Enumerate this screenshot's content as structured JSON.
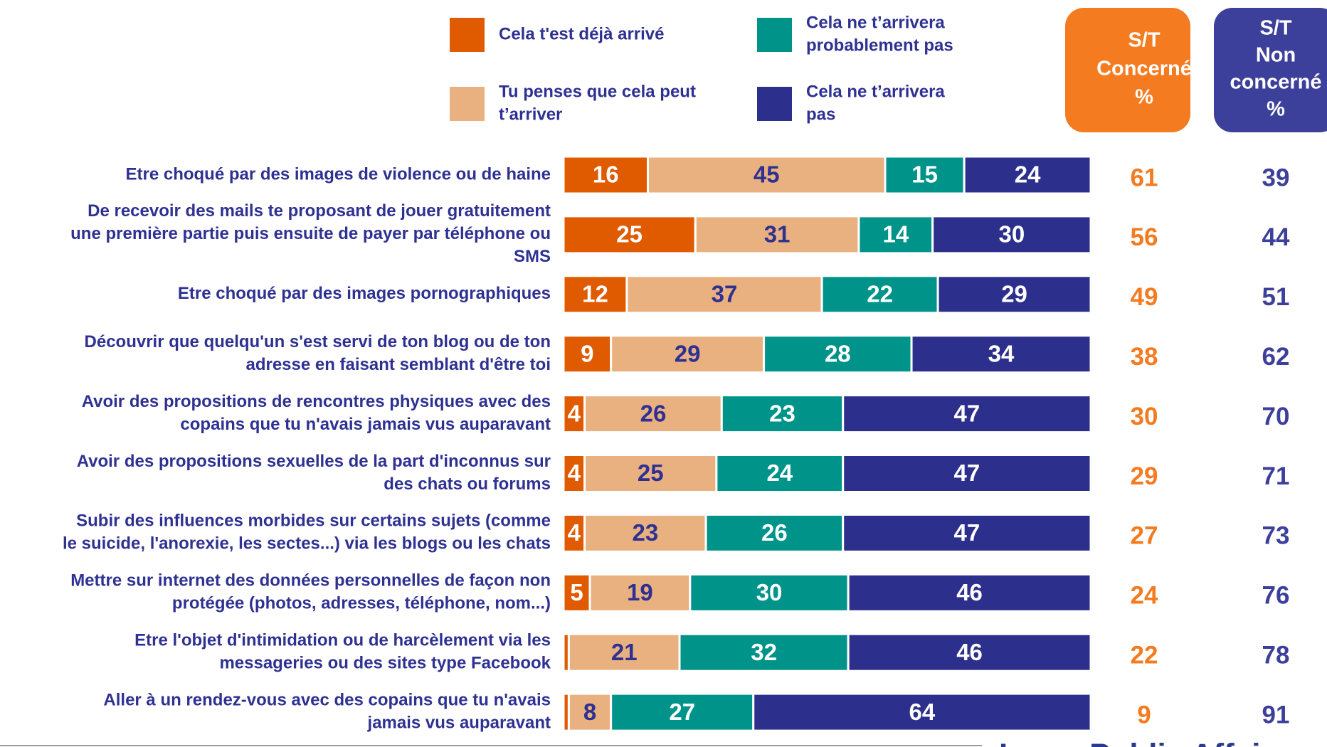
{
  "chart_data": {
    "type": "stacked-barh",
    "categories": [
      [
        "Etre choqué par des images de violence ou de haine"
      ],
      [
        "De recevoir des mails te proposant de jouer gratuitement",
        "une première partie puis ensuite de payer par téléphone ou",
        "SMS"
      ],
      [
        "Etre choqué par des images pornographiques"
      ],
      [
        "Découvrir que quelqu'un s'est servi de ton blog ou de ton",
        "adresse en faisant semblant d'être toi"
      ],
      [
        "Avoir des propositions de rencontres physiques avec des",
        "copains que tu n'avais jamais vus auparavant"
      ],
      [
        "Avoir des propositions sexuelles de la part d'inconnus sur",
        "des chats ou forums"
      ],
      [
        "Subir des influences morbides sur certains sujets (comme",
        "le suicide, l'anorexie, les sectes...) via les blogs ou les chats"
      ],
      [
        "Mettre sur internet des données personnelles de façon non",
        "protégée (photos, adresses, téléphone, nom...)"
      ],
      [
        "Etre l'objet d'intimidation ou de harcèlement via les",
        "messageries ou des sites type Facebook"
      ],
      [
        "Aller à un rendez-vous avec des copains que tu n'avais",
        "jamais vus auparavant"
      ]
    ],
    "series": [
      {
        "name": [
          "Cela t'est déjà arrivé"
        ],
        "color": "#e05a00",
        "values": [
          16,
          25,
          12,
          9,
          4,
          4,
          4,
          5,
          1,
          1
        ]
      },
      {
        "name": [
          "Tu penses que cela peut",
          "t’arriver"
        ],
        "color": "#e9b17f",
        "values": [
          45,
          31,
          37,
          29,
          26,
          25,
          23,
          19,
          21,
          8
        ]
      },
      {
        "name": [
          "Cela ne t’arrivera",
          "probablement pas"
        ],
        "color": "#00938a",
        "values": [
          15,
          14,
          22,
          28,
          23,
          24,
          26,
          30,
          32,
          27
        ]
      },
      {
        "name": [
          "Cela ne t’arrivera",
          "pas"
        ],
        "color": "#2c2f8c",
        "values": [
          24,
          30,
          29,
          34,
          47,
          47,
          47,
          46,
          46,
          64
        ]
      }
    ],
    "xlim": [
      0,
      100
    ],
    "columns": [
      {
        "header": [
          "S/T",
          "Concerné",
          "%"
        ],
        "color": "#f47b20",
        "values": [
          61,
          56,
          49,
          38,
          30,
          29,
          27,
          24,
          22,
          9
        ]
      },
      {
        "header": [
          "S/T",
          "Non",
          "concerné",
          "%"
        ],
        "color": "#3d409b",
        "values": [
          39,
          44,
          51,
          62,
          70,
          71,
          73,
          76,
          78,
          91
        ]
      }
    ],
    "footer": "Ipsos Public Affairs"
  }
}
